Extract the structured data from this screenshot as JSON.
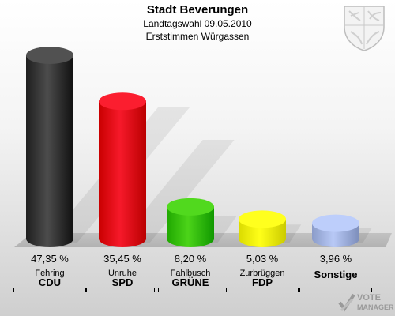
{
  "header": {
    "title": "Stadt Beverungen",
    "subtitle": "Landtagswahl 09.05.2010",
    "subtitle2": "Erststimmen Würgassen"
  },
  "chart_data": {
    "type": "bar",
    "title": "Stadt Beverungen",
    "subtitle": "Landtagswahl 09.05.2010 — Erststimmen Würgassen",
    "categories": [
      "CDU",
      "SPD",
      "GRÜNE",
      "FDP",
      "Sonstige"
    ],
    "candidates": [
      "Fehring",
      "Unruhe",
      "Fahlbusch",
      "Zurbrüggen",
      ""
    ],
    "values": [
      47.35,
      35.45,
      8.2,
      5.03,
      3.96
    ],
    "value_labels": [
      "47,35 %",
      "35,45 %",
      "8,20 %",
      "5,03 %",
      "3,96 %"
    ],
    "colors": [
      "#333333",
      "#dd0011",
      "#33bb00",
      "#eeee00",
      "#9fb0dd"
    ],
    "ylim": [
      0,
      50
    ],
    "grid": false,
    "legend": "none"
  },
  "logo": {
    "line1": "VOTE",
    "line2": "MANAGER"
  },
  "crest": {
    "icon": "coat-of-arms-icon"
  }
}
